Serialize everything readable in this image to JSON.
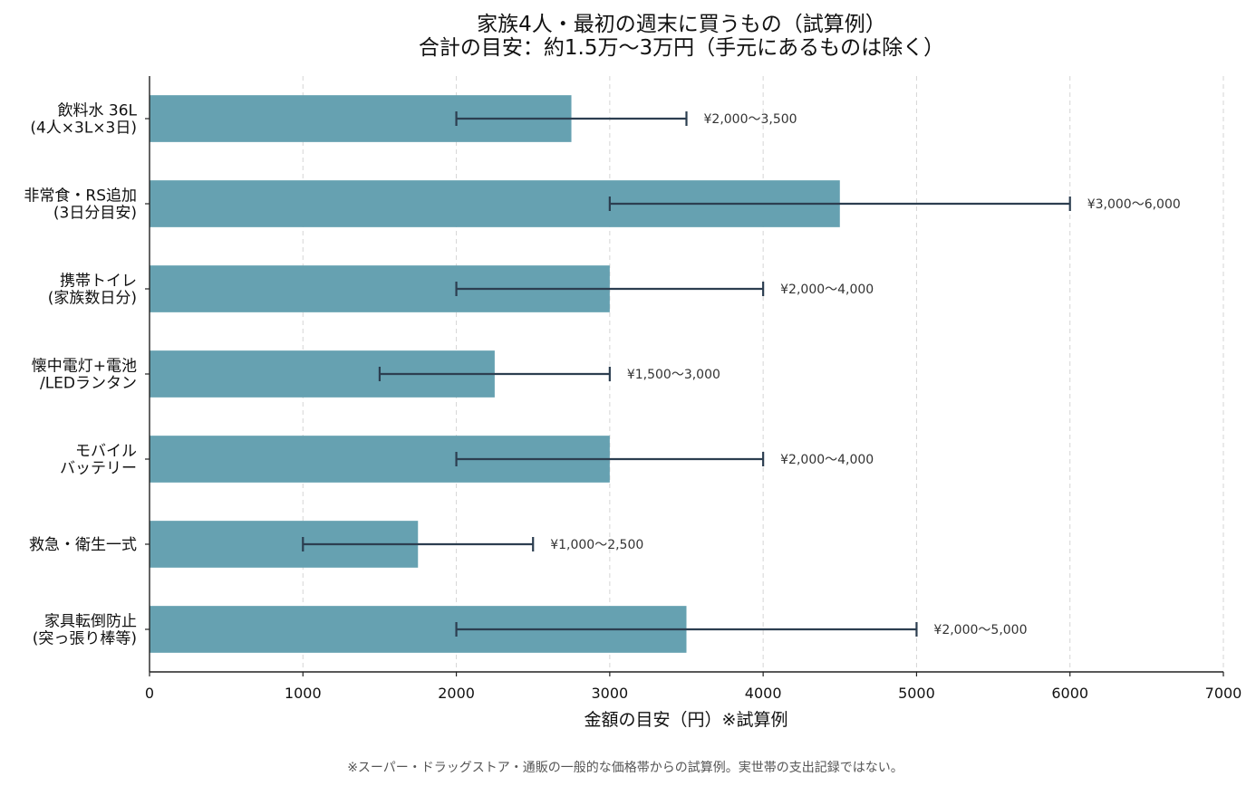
{
  "chart_data": {
    "type": "bar",
    "orientation": "horizontal",
    "title": "家族4人・最初の週末に買うもの（試算例）",
    "subtitle": "合計の目安：約1.5万〜3万円（手元にあるものは除く）",
    "xlabel": "金額の目安（円）※試算例",
    "ylabel": "",
    "xlim": [
      0,
      7000
    ],
    "xticks": [
      0,
      1000,
      2000,
      3000,
      4000,
      5000,
      6000,
      7000
    ],
    "grid": "x-dashed",
    "bar_color": "#66a1b1",
    "errorbar_color": "#2c3e50",
    "categories": [
      [
        "飲料水 36L",
        "(4人×3L×3日)"
      ],
      [
        "非常食・RS追加",
        "(3日分目安)"
      ],
      [
        "携帯トイレ",
        "(家族数日分)"
      ],
      [
        "懐中電灯+電池",
        "/LEDランタン"
      ],
      [
        "モバイル",
        "バッテリー"
      ],
      [
        "救急・衛生一式"
      ],
      [
        "家具転倒防止",
        "(突っ張り棒等)"
      ]
    ],
    "values": [
      2750,
      4500,
      3000,
      2250,
      3000,
      1750,
      3500
    ],
    "ranges": [
      [
        2000,
        3500
      ],
      [
        3000,
        6000
      ],
      [
        2000,
        4000
      ],
      [
        1500,
        3000
      ],
      [
        2000,
        4000
      ],
      [
        1000,
        2500
      ],
      [
        2000,
        5000
      ]
    ],
    "range_labels": [
      "¥2,000〜3,500",
      "¥3,000〜6,000",
      "¥2,000〜4,000",
      "¥1,500〜3,000",
      "¥2,000〜4,000",
      "¥1,000〜2,500",
      "¥2,000〜5,000"
    ]
  },
  "footnote": "※スーパー・ドラッグストア・通販の一般的な価格帯からの試算例。実世帯の支出記録ではない。"
}
